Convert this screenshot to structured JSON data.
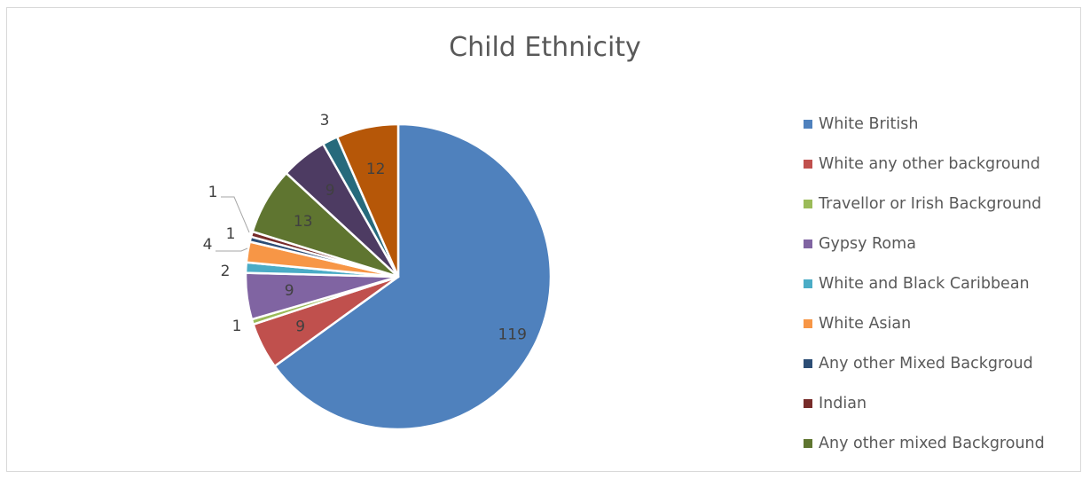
{
  "chart_data": {
    "type": "pie",
    "title": "Child Ethnicity",
    "legend_position": "right",
    "categories": [
      "White British",
      "White any other background",
      "Travellor or Irish Background",
      "Gypsy Roma",
      "White and Black Caribbean",
      "White Asian",
      "Any other Mixed Backgroud",
      "Indian",
      "Any other mixed Background",
      "",
      "",
      ""
    ],
    "values": [
      119,
      9,
      1,
      9,
      2,
      4,
      1,
      1,
      13,
      9,
      3,
      12
    ],
    "colors": [
      "#4f81bd",
      "#c0504d",
      "#9bbb59",
      "#8064a2",
      "#4bacc6",
      "#f79646",
      "#2c4d75",
      "#772c2a",
      "#5f7530",
      "#4d3b62",
      "#276a7c",
      "#b65708"
    ],
    "legend_entries": [
      "White British",
      "White any other background",
      "Travellor or Irish Background",
      "Gypsy Roma",
      "White and Black Caribbean",
      "White Asian",
      "Any other Mixed Backgroud",
      "Indian",
      "Any other mixed Background"
    ]
  }
}
